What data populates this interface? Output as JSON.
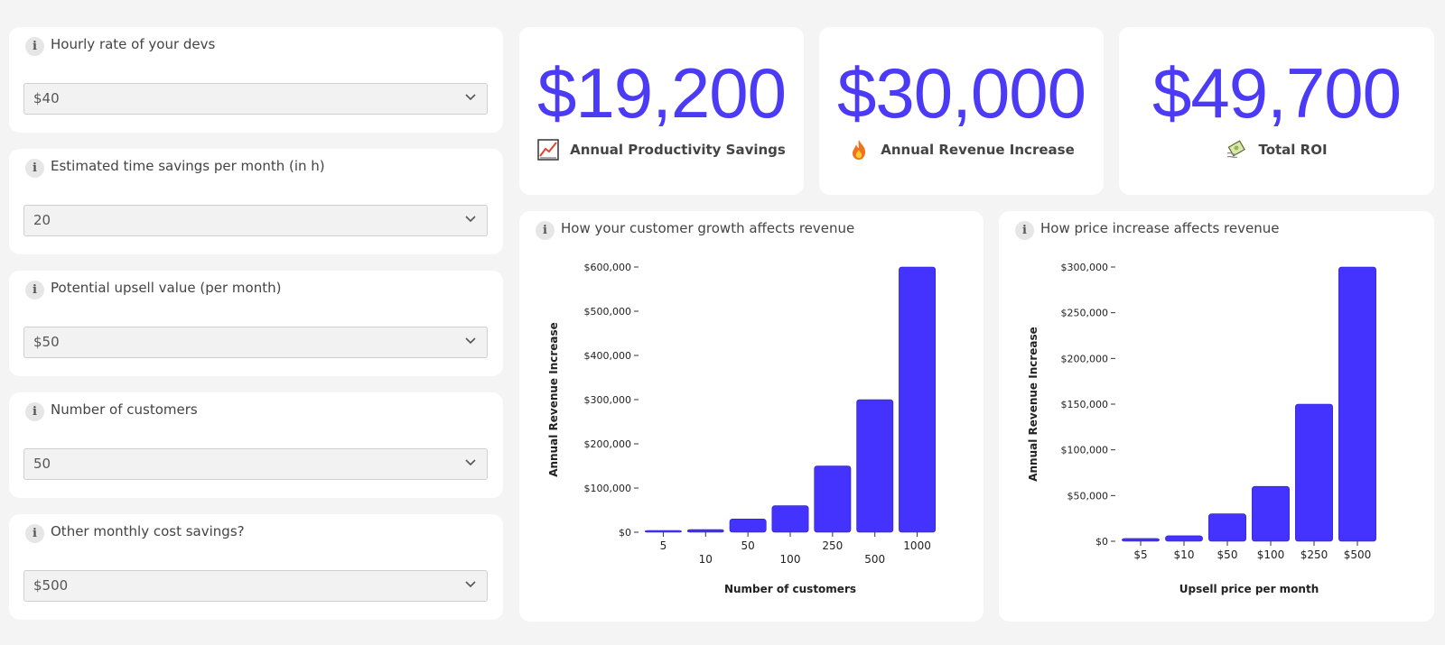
{
  "inputs": [
    {
      "label": "Hourly rate of your devs",
      "value": "$40"
    },
    {
      "label": "Estimated time savings per month (in h)",
      "value": "20"
    },
    {
      "label": "Potential upsell value (per month)",
      "value": "$50"
    },
    {
      "label": "Number of customers",
      "value": "50"
    },
    {
      "label": "Other monthly cost savings?",
      "value": "$500"
    }
  ],
  "info_glyph": "i",
  "stats": [
    {
      "value": "$19,200",
      "label": "Annual Productivity Savings",
      "icon": "chart-increasing-icon"
    },
    {
      "value": "$30,000",
      "label": "Annual Revenue Increase",
      "icon": "fire-icon"
    },
    {
      "value": "$49,700",
      "label": "Total ROI",
      "icon": "money-with-wings-icon"
    }
  ],
  "colors": {
    "accent": "#4b3af6",
    "bar": "#4433ff"
  },
  "chart_data": [
    {
      "type": "bar",
      "title": "How your customer growth affects revenue",
      "xlabel": "Number of customers",
      "ylabel": "Annual Revenue Increase",
      "categories": [
        "5",
        "10",
        "50",
        "100",
        "250",
        "500",
        "1000"
      ],
      "values": [
        3000,
        6000,
        30000,
        60000,
        150000,
        300000,
        600000
      ],
      "ylim": [
        0,
        600000
      ],
      "yticks": [
        "$0",
        "$100,000",
        "$200,000",
        "$300,000",
        "$400,000",
        "$500,000",
        "$600,000"
      ],
      "grid": false
    },
    {
      "type": "bar",
      "title": "How price increase affects revenue",
      "xlabel": "Upsell price per month",
      "ylabel": "Annual Revenue Increase",
      "categories": [
        "$5",
        "$10",
        "$50",
        "$100",
        "$250",
        "$500"
      ],
      "values": [
        3000,
        6000,
        30000,
        60000,
        150000,
        300000
      ],
      "ylim": [
        0,
        300000
      ],
      "yticks": [
        "$0",
        "$50,000",
        "$100,000",
        "$150,000",
        "$200,000",
        "$250,000",
        "$300,000"
      ],
      "grid": false
    }
  ]
}
